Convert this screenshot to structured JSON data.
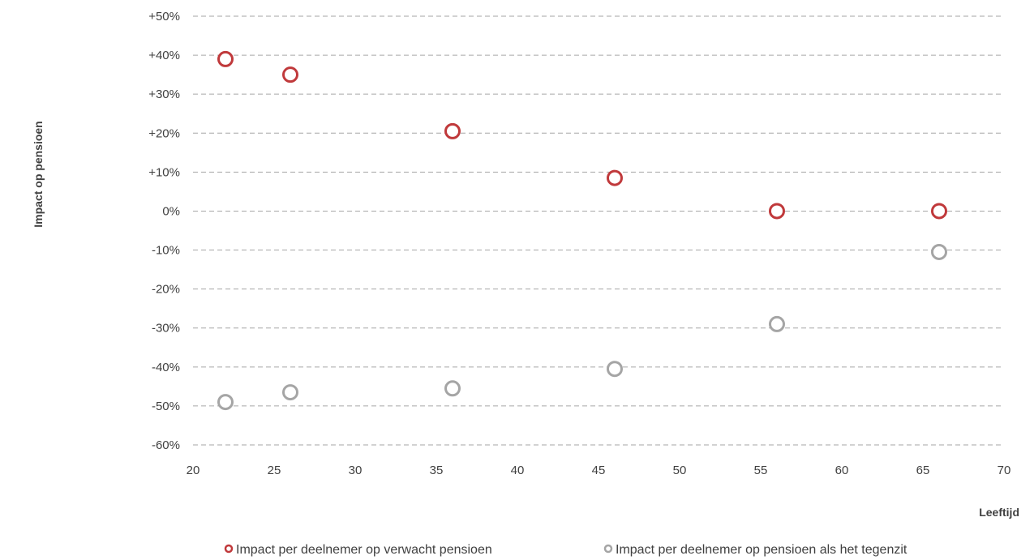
{
  "chart_data": {
    "type": "scatter",
    "title": "",
    "xlabel": "Leeftijd",
    "ylabel": "Impact op pensioen",
    "xlim": [
      20,
      70
    ],
    "ylim": [
      -60,
      50
    ],
    "x_ticks": [
      20,
      25,
      30,
      35,
      40,
      45,
      50,
      55,
      60,
      65,
      70
    ],
    "x_tick_labels": [
      "20",
      "25",
      "30",
      "35",
      "40",
      "45",
      "50",
      "55",
      "60",
      "65",
      "70"
    ],
    "y_ticks": [
      50,
      40,
      30,
      20,
      10,
      0,
      -10,
      -20,
      -30,
      -40,
      -50,
      -60
    ],
    "y_tick_labels": [
      "+50%",
      "+40%",
      "+30%",
      "+20%",
      "+10%",
      "0%",
      "-10%",
      "-20%",
      "-30%",
      "-40%",
      "-50%",
      "-60%"
    ],
    "grid": "horizontal dashed",
    "legend_position": "bottom",
    "series": [
      {
        "name": "Impact per deelnemer op verwacht pensioen",
        "color": "#c0393b",
        "marker": "hollow-circle",
        "x": [
          22,
          26,
          36,
          46,
          56,
          66
        ],
        "y": [
          39,
          35,
          20.5,
          8.5,
          0,
          0
        ]
      },
      {
        "name": "Impact per deelnemer op pensioen als het tegenzit",
        "color": "#a5a5a5",
        "marker": "hollow-circle",
        "x": [
          22,
          26,
          36,
          46,
          56,
          66
        ],
        "y": [
          -49,
          -46.5,
          -45.5,
          -40.5,
          -29,
          -10.5
        ]
      }
    ]
  }
}
